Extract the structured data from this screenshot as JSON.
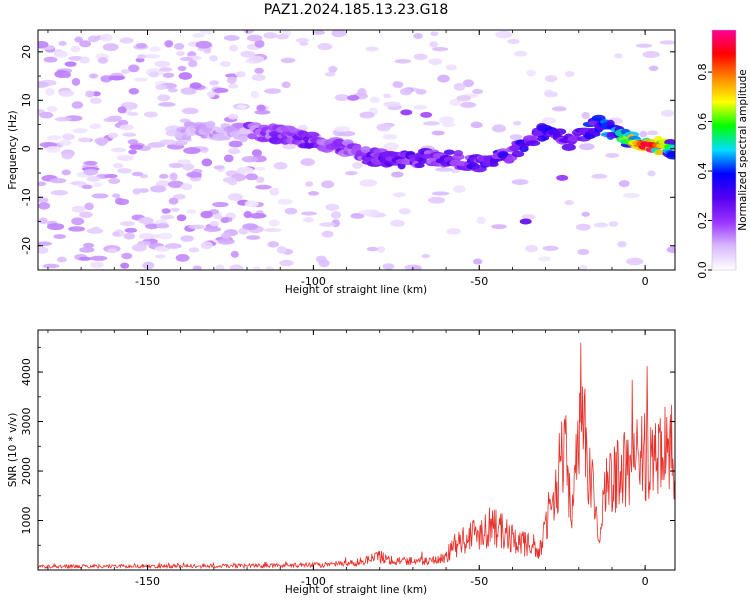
{
  "title": "PAZ1.2024.185.13.23.G18",
  "chart_data": [
    {
      "type": "heatmap",
      "xlabel": "Height of straight line (km)",
      "ylabel": "Frequency (Hz)",
      "xlim": [
        -183,
        9
      ],
      "ylim": [
        -25,
        24.5
      ],
      "xticks": [
        -150,
        -100,
        -50,
        0
      ],
      "yticks": [
        -20,
        -10,
        0,
        10,
        20
      ],
      "colorbar": {
        "label": "Normalized spectral amplitude",
        "range": [
          0,
          0.97
        ],
        "ticks": [
          0.0,
          0.2,
          0.4,
          0.6,
          0.8
        ],
        "colormap": [
          "#ffffff",
          "#d9b8ff",
          "#9933ff",
          "#5500ee",
          "#0000ff",
          "#00ddff",
          "#00ff00",
          "#ffff00",
          "#ff8800",
          "#ff0000",
          "#ff0099"
        ]
      },
      "ridge": [
        {
          "x": -120,
          "y": 3.5,
          "amp": 0.2
        },
        {
          "x": -105,
          "y": 2.5,
          "amp": 0.25
        },
        {
          "x": -90,
          "y": 0,
          "amp": 0.22
        },
        {
          "x": -80,
          "y": -2,
          "amp": 0.28
        },
        {
          "x": -60,
          "y": -2,
          "amp": 0.26
        },
        {
          "x": -50,
          "y": -3,
          "amp": 0.3
        },
        {
          "x": -40,
          "y": -1,
          "amp": 0.3
        },
        {
          "x": -30,
          "y": 3.5,
          "amp": 0.35
        },
        {
          "x": -22,
          "y": 1,
          "amp": 0.3
        },
        {
          "x": -14,
          "y": 5.5,
          "amp": 0.38
        },
        {
          "x": -8,
          "y": 3,
          "amp": 0.45
        },
        {
          "x": 0,
          "y": 1,
          "amp": 0.95
        },
        {
          "x": 8,
          "y": 0,
          "amp": 0.5
        }
      ]
    },
    {
      "type": "line",
      "xlabel": "Height of straight line (km)",
      "ylabel": "SNR (10 * v/v)",
      "xlim": [
        -183,
        9
      ],
      "ylim": [
        0,
        4850
      ],
      "xticks": [
        -150,
        -100,
        -50,
        0
      ],
      "yticks": [
        1000,
        2000,
        3000,
        4000
      ],
      "color": "#e8302a",
      "series": [
        {
          "x": [
            -183,
            -160,
            -140,
            -120,
            -100,
            -90,
            -85,
            -80,
            -75,
            -70,
            -65,
            -60,
            -57,
            -55,
            -50,
            -46,
            -42,
            -38,
            -35,
            -32,
            -30,
            -28,
            -26,
            -24,
            -22,
            -20,
            -19.5,
            -18,
            -16,
            -14,
            -13,
            -12,
            -8,
            -4,
            0,
            4,
            6,
            7,
            8,
            9
          ],
          "y": [
            100,
            110,
            110,
            120,
            140,
            190,
            250,
            400,
            250,
            280,
            250,
            380,
            700,
            900,
            1100,
            1350,
            1000,
            850,
            700,
            500,
            1300,
            1750,
            2700,
            3100,
            1600,
            3400,
            4800,
            3000,
            2300,
            900,
            1500,
            2200,
            2600,
            2800,
            3100,
            2900,
            3400,
            3300,
            3500,
            2000
          ]
        }
      ]
    }
  ]
}
